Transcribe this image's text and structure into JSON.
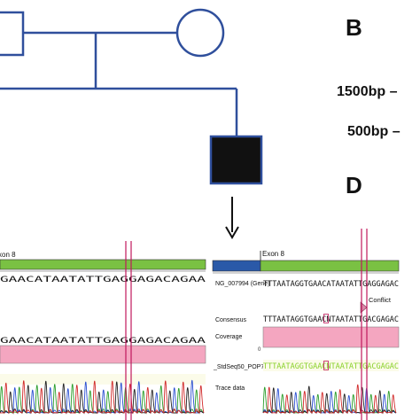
{
  "panel_labels": {
    "b": "B",
    "d": "D"
  },
  "ladder": {
    "upper": "1500bp –",
    "lower": "500bp –"
  },
  "left_panel": {
    "exon_label": "xon 8",
    "sequence_top": "GAACATAATATTGAGGAGACAGAA",
    "sequence_bottom": "GAACATAATATTGAGGAGACAGAA"
  },
  "right_panel": {
    "exon_label": "Exon 8",
    "gene_label": "NG_007994 (Gene)",
    "gene_sequence": "TTTAATAGGTGAACATAATATTGAGGAGAC",
    "conflict_label": "Conflict",
    "consensus_label": "Consensus",
    "consensus_sequence": "TTTAATAGGTGAACNTAATATTGACGAGAC",
    "coverage_label": "Coverage",
    "coverage_value": "0",
    "read_label": "_StdSeq50_POP7_1",
    "read_sequence": "TTTAATAGGTGAACNTAATATTGACGAGAC",
    "trace_label": "Trace data"
  },
  "colors": {
    "pedigree": "#2f4f9c",
    "exon_green": "#7ac143",
    "exon_blue": "#2a59a8",
    "coverage_pink": "#f4a6c0",
    "marker_line": "#c0185c",
    "read_seq": "#8ad12a",
    "trace_a": "#2a9d2a",
    "trace_c": "#2a4fd1",
    "trace_g": "#222222",
    "trace_t": "#d12a2a"
  }
}
